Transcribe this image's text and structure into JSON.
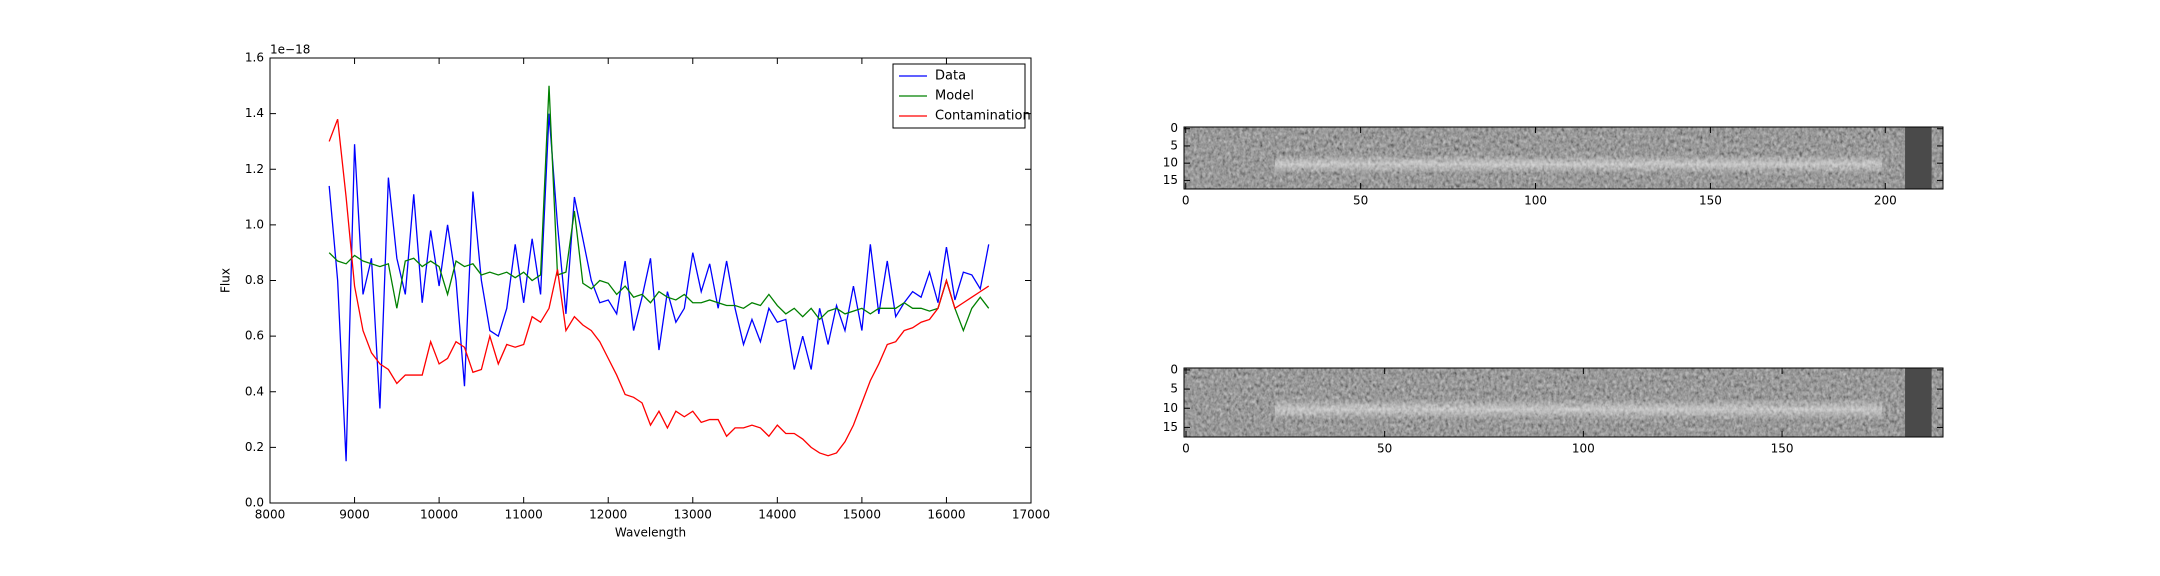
{
  "chart_data": [
    {
      "type": "line",
      "xlabel": "Wavelength",
      "ylabel": "Flux",
      "offset_label": "1e−18",
      "x": [
        8700,
        8800,
        8900,
        9000,
        9100,
        9200,
        9300,
        9400,
        9500,
        9600,
        9700,
        9800,
        9900,
        10000,
        10100,
        10200,
        10300,
        10400,
        10500,
        10600,
        10700,
        10800,
        10900,
        11000,
        11100,
        11200,
        11300,
        11400,
        11500,
        11600,
        11700,
        11800,
        11900,
        12000,
        12100,
        12200,
        12300,
        12400,
        12500,
        12600,
        12700,
        12800,
        12900,
        13000,
        13100,
        13200,
        13300,
        13400,
        13500,
        13600,
        13700,
        13800,
        13900,
        14000,
        14100,
        14200,
        14300,
        14400,
        14500,
        14600,
        14700,
        14800,
        14900,
        15000,
        15100,
        15200,
        15300,
        15400,
        15500,
        15600,
        15700,
        15800,
        15900,
        16000,
        16100,
        16200,
        16300,
        16400,
        16500
      ],
      "series": [
        {
          "name": "Data",
          "color": "#0000ff",
          "values": [
            1.14,
            0.8,
            0.15,
            1.29,
            0.75,
            0.88,
            0.34,
            1.17,
            0.88,
            0.75,
            1.11,
            0.72,
            0.98,
            0.78,
            1.0,
            0.8,
            0.42,
            1.12,
            0.8,
            0.62,
            0.6,
            0.7,
            0.93,
            0.72,
            0.95,
            0.75,
            1.4,
            1.0,
            0.68,
            1.1,
            0.95,
            0.8,
            0.72,
            0.73,
            0.68,
            0.87,
            0.62,
            0.74,
            0.88,
            0.55,
            0.76,
            0.65,
            0.7,
            0.9,
            0.76,
            0.86,
            0.7,
            0.87,
            0.7,
            0.57,
            0.66,
            0.58,
            0.7,
            0.65,
            0.66,
            0.48,
            0.6,
            0.48,
            0.7,
            0.57,
            0.71,
            0.62,
            0.78,
            0.62,
            0.93,
            0.68,
            0.87,
            0.67,
            0.72,
            0.76,
            0.74,
            0.83,
            0.72,
            0.92,
            0.73,
            0.83,
            0.82,
            0.77,
            0.93
          ]
        },
        {
          "name": "Model",
          "color": "#008000",
          "values": [
            0.9,
            0.87,
            0.86,
            0.89,
            0.87,
            0.86,
            0.85,
            0.86,
            0.7,
            0.87,
            0.88,
            0.85,
            0.87,
            0.85,
            0.75,
            0.87,
            0.85,
            0.86,
            0.82,
            0.83,
            0.82,
            0.83,
            0.81,
            0.83,
            0.8,
            0.82,
            1.5,
            0.82,
            0.83,
            1.05,
            0.79,
            0.77,
            0.8,
            0.79,
            0.75,
            0.78,
            0.74,
            0.75,
            0.72,
            0.76,
            0.74,
            0.73,
            0.75,
            0.72,
            0.72,
            0.73,
            0.72,
            0.71,
            0.71,
            0.7,
            0.72,
            0.71,
            0.75,
            0.71,
            0.68,
            0.7,
            0.67,
            0.7,
            0.66,
            0.69,
            0.7,
            0.68,
            0.69,
            0.7,
            0.68,
            0.7,
            0.7,
            0.7,
            0.72,
            0.7,
            0.7,
            0.69,
            0.7,
            0.8,
            0.7,
            0.62,
            0.7,
            0.74,
            0.7
          ]
        },
        {
          "name": "Contamination",
          "color": "#ff0000",
          "values": [
            1.3,
            1.38,
            1.1,
            0.78,
            0.62,
            0.54,
            0.5,
            0.48,
            0.43,
            0.46,
            0.46,
            0.46,
            0.58,
            0.5,
            0.52,
            0.58,
            0.56,
            0.47,
            0.48,
            0.6,
            0.5,
            0.57,
            0.56,
            0.57,
            0.67,
            0.65,
            0.7,
            0.84,
            0.62,
            0.67,
            0.64,
            0.62,
            0.58,
            0.52,
            0.46,
            0.39,
            0.38,
            0.36,
            0.28,
            0.33,
            0.27,
            0.33,
            0.31,
            0.33,
            0.29,
            0.3,
            0.3,
            0.24,
            0.27,
            0.27,
            0.28,
            0.27,
            0.24,
            0.28,
            0.25,
            0.25,
            0.23,
            0.2,
            0.18,
            0.17,
            0.18,
            0.22,
            0.28,
            0.36,
            0.44,
            0.5,
            0.57,
            0.58,
            0.62,
            0.63,
            0.65,
            0.66,
            0.7,
            0.8,
            0.7,
            0.72,
            0.74,
            0.76,
            0.78
          ]
        }
      ],
      "xlim": [
        8000,
        17000
      ],
      "xticks": [
        8000,
        9000,
        10000,
        11000,
        12000,
        13000,
        14000,
        15000,
        16000,
        17000
      ],
      "ylim": [
        0,
        1.6
      ],
      "yticks": [
        {
          "value": 0,
          "label": "0.0"
        },
        0.2,
        0.4,
        0.6,
        0.8,
        {
          "value": 1,
          "label": "1.0"
        },
        1.2,
        1.4,
        1.6
      ],
      "legend": "upper right"
    },
    {
      "type": "image",
      "xlim": [
        -0.5,
        216.5
      ],
      "xticks": [
        0,
        50,
        100,
        150,
        200
      ],
      "ylim": [
        17.5,
        -0.5
      ],
      "yticks": [
        0,
        5,
        10,
        15
      ]
    },
    {
      "type": "image",
      "xlim": [
        -0.5,
        190.5
      ],
      "xticks": [
        0,
        50,
        100,
        150
      ],
      "ylim": [
        17.5,
        -0.5
      ],
      "yticks": [
        0,
        5,
        10,
        15
      ]
    }
  ]
}
